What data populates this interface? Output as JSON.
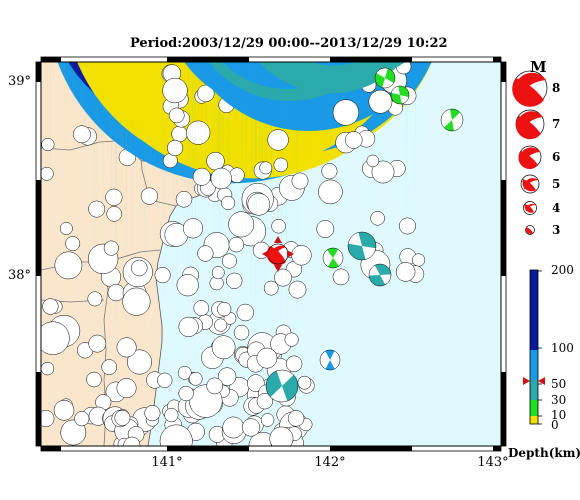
{
  "title": "Period:2003/12/29 00:00--2013/12/29 10:22",
  "axes": {
    "lat_labels": [
      "39°",
      "38°"
    ],
    "lon_labels": [
      "141°",
      "142°",
      "143°"
    ]
  },
  "colors": {
    "land": "#fae6cc",
    "sea": "#dffafe",
    "depth_0_10": "#f2e100",
    "depth_10_30": "#22dd22",
    "depth_30_60": "#2aaaaa",
    "depth_60_100": "#1a9ae6",
    "depth_100_200": "#0a1b9e",
    "latest_event": "#ee1111",
    "frame": "#000000"
  },
  "legend": {
    "magnitude_title": "M",
    "magnitudes": [
      "8",
      "7",
      "6",
      "5",
      "4",
      "3"
    ],
    "depth_title": "Depth(km)",
    "depth_ticks": [
      "200",
      "100",
      "50",
      "30",
      "10",
      "0"
    ]
  },
  "latest_event": {
    "symbol": "red-beachball",
    "marker": "red-triangles"
  }
}
